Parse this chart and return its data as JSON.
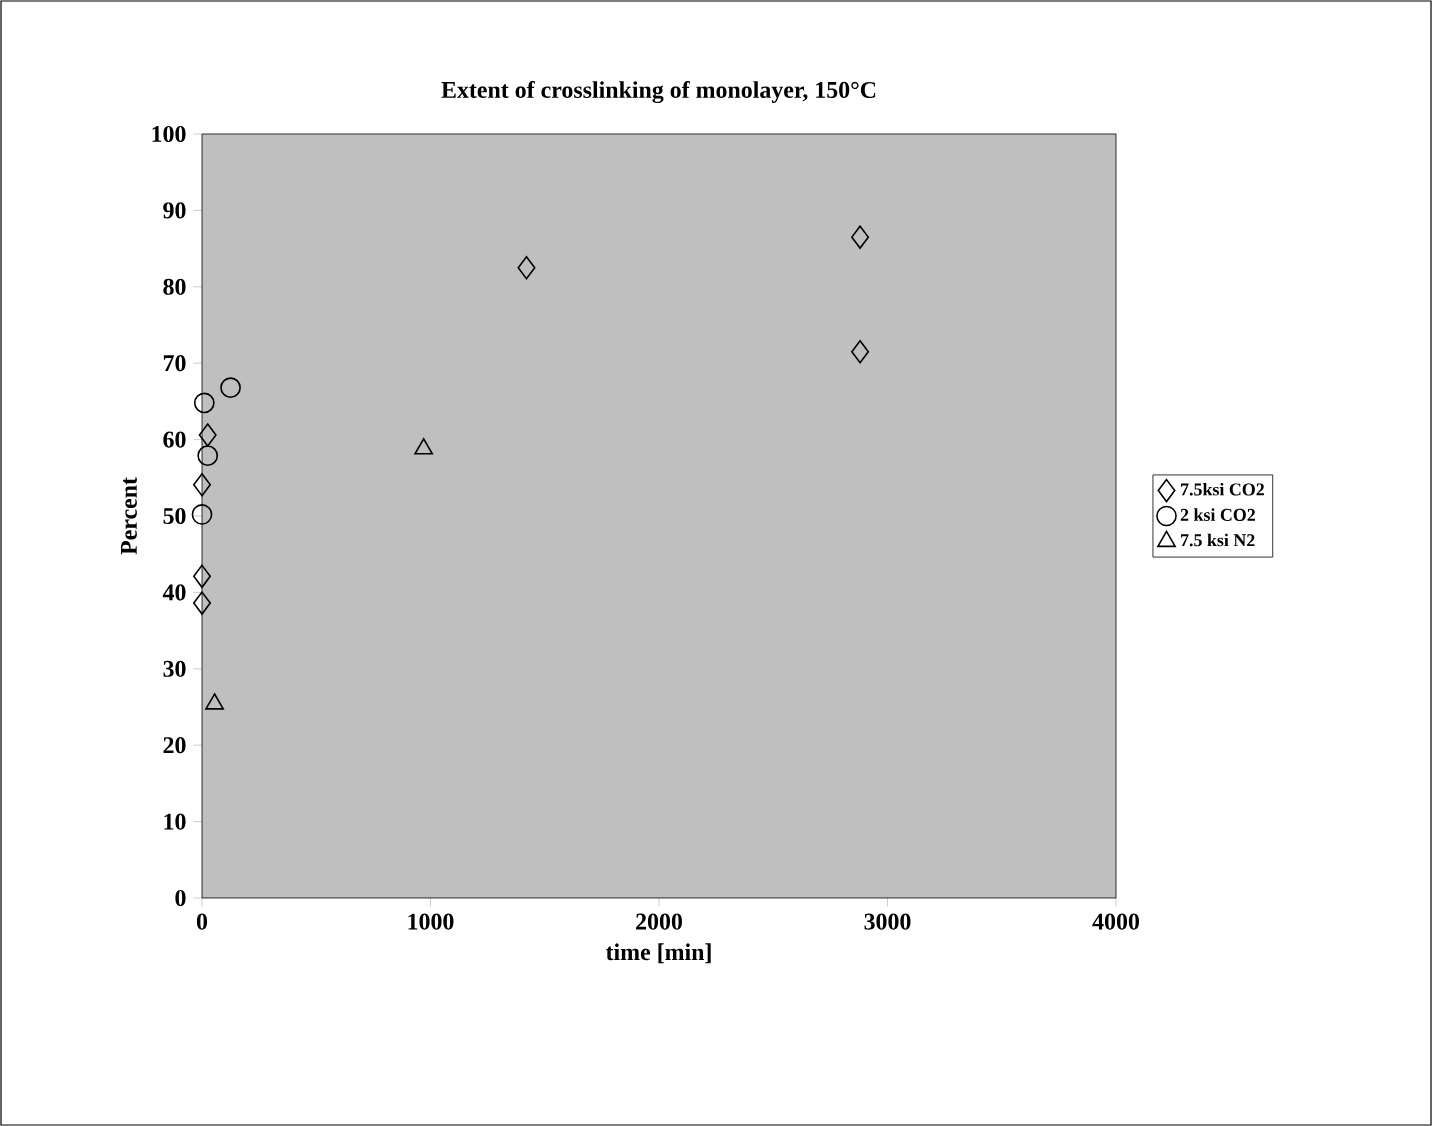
{
  "chart_data": {
    "type": "scatter",
    "title": "Extent of  crosslinking of monolayer, 150°C",
    "xlabel": "time [min]",
    "ylabel": "Percent",
    "xlim": [
      0,
      4000
    ],
    "xticks": [
      0,
      1000,
      2000,
      3000,
      4000
    ],
    "ylim": [
      0,
      100
    ],
    "yticks": [
      0,
      10,
      20,
      30,
      40,
      50,
      60,
      70,
      80,
      90,
      100
    ],
    "legend": "right",
    "grid": false,
    "series": [
      {
        "name": "7.5ksi CO2",
        "color": "#000000",
        "marker": "diamond",
        "x": [
          25,
          0,
          0,
          0,
          1420,
          2880,
          2880
        ],
        "values": [
          60.6,
          54.1,
          42.1,
          38.6,
          82.5,
          86.5,
          71.5
        ]
      },
      {
        "name": "2 ksi CO2",
        "color": "#000000",
        "marker": "circle",
        "x": [
          10,
          25,
          0,
          125
        ],
        "values": [
          64.8,
          57.9,
          50.2,
          66.8
        ]
      },
      {
        "name": "7.5 ksi N2",
        "color": "#000000",
        "marker": "triangle",
        "x": [
          55,
          970
        ],
        "values": [
          25.4,
          58.8
        ]
      }
    ]
  }
}
